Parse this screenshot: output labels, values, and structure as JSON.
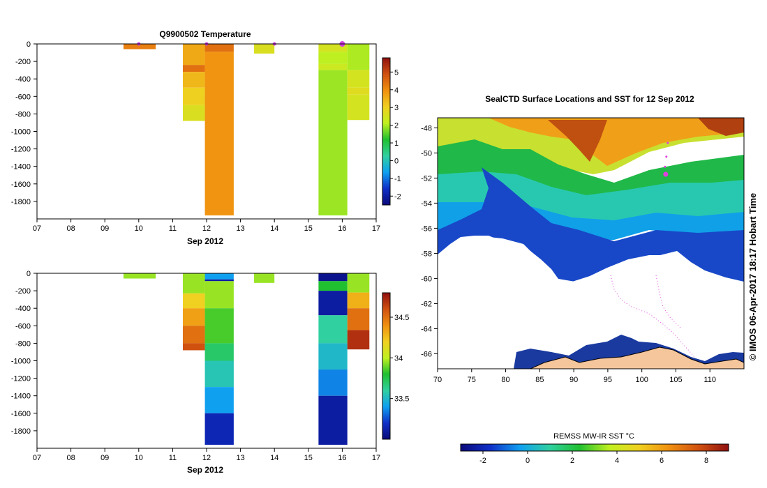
{
  "chart_data": [
    {
      "type": "heatmap",
      "id": "temperature-section",
      "title": "Q9900502  Temperature",
      "xlabel": "Sep 2012",
      "ylabel": "",
      "xlim": [
        7,
        17
      ],
      "ylim": [
        -2000,
        0
      ],
      "xticks": [
        "07",
        "08",
        "09",
        "10",
        "11",
        "12",
        "13",
        "14",
        "15",
        "16",
        "17"
      ],
      "yticks": [
        "0",
        "-200",
        "-400",
        "-600",
        "-800",
        "-1000",
        "-1200",
        "-1400",
        "-1600",
        "-1800"
      ],
      "colorbar": {
        "min": -2.5,
        "max": 5.8,
        "ticks": [
          "5",
          "4",
          "3",
          "2",
          "1",
          "0",
          "-1",
          "-2"
        ],
        "colors": [
          "#0a0a7a",
          "#1030c8",
          "#10a0f0",
          "#30d0a0",
          "#20c030",
          "#c0f020",
          "#f0d020",
          "#f09010",
          "#d05010",
          "#901010"
        ]
      },
      "profiles": [
        {
          "start": 9.55,
          "end": 10.5,
          "layers": [
            {
              "top": 0,
              "bottom": -60,
              "value": 4.2
            }
          ]
        },
        {
          "start": 11.3,
          "end": 11.95,
          "layers": [
            {
              "top": 0,
              "bottom": -240,
              "value": 3.6
            },
            {
              "top": -240,
              "bottom": -320,
              "value": 4.4
            },
            {
              "top": -320,
              "bottom": -500,
              "value": 3.4
            },
            {
              "top": -500,
              "bottom": -700,
              "value": 3.0
            },
            {
              "top": -700,
              "bottom": -880,
              "value": 2.6
            }
          ]
        },
        {
          "start": 11.95,
          "end": 12.8,
          "layers": [
            {
              "top": 0,
              "bottom": -90,
              "value": 4.4
            },
            {
              "top": -90,
              "bottom": -1960,
              "value": 3.9
            }
          ]
        },
        {
          "start": 13.4,
          "end": 14.0,
          "layers": [
            {
              "top": 0,
              "bottom": -110,
              "value": 2.6
            }
          ]
        },
        {
          "start": 15.3,
          "end": 16.15,
          "layers": [
            {
              "top": 0,
              "bottom": -90,
              "value": 2.5
            },
            {
              "top": -90,
              "bottom": -230,
              "value": 2.1
            },
            {
              "top": -230,
              "bottom": -300,
              "value": 2.3
            },
            {
              "top": -300,
              "bottom": -1960,
              "value": 1.9
            }
          ]
        },
        {
          "start": 16.15,
          "end": 16.8,
          "layers": [
            {
              "top": 0,
              "bottom": -300,
              "value": 2.0
            },
            {
              "top": -300,
              "bottom": -500,
              "value": 2.5
            },
            {
              "top": -500,
              "bottom": -580,
              "value": 2.7
            },
            {
              "top": -580,
              "bottom": -870,
              "value": 2.5
            }
          ]
        }
      ],
      "markers": [
        10.0,
        12.0,
        14.0,
        16.0
      ]
    },
    {
      "type": "heatmap",
      "id": "salinity-section",
      "title": "",
      "xlabel": "Sep 2012",
      "ylabel": "",
      "xlim": [
        7,
        17
      ],
      "ylim": [
        -2000,
        0
      ],
      "xticks": [
        "07",
        "08",
        "09",
        "10",
        "11",
        "12",
        "13",
        "14",
        "15",
        "16",
        "17"
      ],
      "yticks": [
        "0",
        "-200",
        "-400",
        "-600",
        "-800",
        "-1000",
        "-1200",
        "-1400",
        "-1600",
        "-1800"
      ],
      "colorbar": {
        "min": 33.0,
        "max": 34.8,
        "ticks": [
          "34.5",
          "34",
          "33.5"
        ],
        "colors": [
          "#0a0a7a",
          "#1030c8",
          "#10a0f0",
          "#30d0a0",
          "#20c030",
          "#c0f020",
          "#f0d020",
          "#f09010",
          "#d05010",
          "#901010"
        ]
      },
      "profiles": [
        {
          "start": 9.55,
          "end": 10.5,
          "layers": [
            {
              "top": 0,
              "bottom": -60,
              "value": 33.95
            }
          ]
        },
        {
          "start": 11.3,
          "end": 11.95,
          "layers": [
            {
              "top": 0,
              "bottom": -230,
              "value": 33.95
            },
            {
              "top": -230,
              "bottom": -400,
              "value": 34.2
            },
            {
              "top": -400,
              "bottom": -600,
              "value": 34.35
            },
            {
              "top": -600,
              "bottom": -800,
              "value": 34.5
            },
            {
              "top": -800,
              "bottom": -880,
              "value": 34.6
            }
          ]
        },
        {
          "start": 11.95,
          "end": 12.8,
          "layers": [
            {
              "top": 0,
              "bottom": -70,
              "value": 33.4
            },
            {
              "top": -70,
              "bottom": -90,
              "value": 33.1
            },
            {
              "top": -90,
              "bottom": -400,
              "value": 33.95
            },
            {
              "top": -400,
              "bottom": -800,
              "value": 33.85
            },
            {
              "top": -800,
              "bottom": -1000,
              "value": 33.7
            },
            {
              "top": -1000,
              "bottom": -1300,
              "value": 33.55
            },
            {
              "top": -1300,
              "bottom": -1600,
              "value": 33.4
            },
            {
              "top": -1600,
              "bottom": -1960,
              "value": 33.15
            }
          ]
        },
        {
          "start": 13.4,
          "end": 14.0,
          "layers": [
            {
              "top": 0,
              "bottom": -110,
              "value": 33.95
            }
          ]
        },
        {
          "start": 15.3,
          "end": 16.15,
          "layers": [
            {
              "top": 0,
              "bottom": -90,
              "value": 33.05
            },
            {
              "top": -90,
              "bottom": -200,
              "value": 33.8
            },
            {
              "top": -200,
              "bottom": -480,
              "value": 33.1
            },
            {
              "top": -480,
              "bottom": -800,
              "value": 33.6
            },
            {
              "top": -800,
              "bottom": -1100,
              "value": 33.5
            },
            {
              "top": -1100,
              "bottom": -1400,
              "value": 33.35
            },
            {
              "top": -1400,
              "bottom": -1960,
              "value": 33.1
            }
          ]
        },
        {
          "start": 16.15,
          "end": 16.8,
          "layers": [
            {
              "top": 0,
              "bottom": -220,
              "value": 33.95
            },
            {
              "top": -220,
              "bottom": -400,
              "value": 34.3
            },
            {
              "top": -400,
              "bottom": -650,
              "value": 34.5
            },
            {
              "top": -650,
              "bottom": -870,
              "value": 34.7
            }
          ]
        }
      ]
    },
    {
      "type": "heatmap",
      "id": "sst-map",
      "title": "SealCTD Surface Locations and SST for 12 Sep 2012",
      "xlabel": "",
      "ylabel": "",
      "xlim": [
        70,
        115
      ],
      "ylim": [
        -67.2,
        -47.2
      ],
      "xticks": [
        "70",
        "75",
        "80",
        "85",
        "90",
        "95",
        "100",
        "105",
        "110"
      ],
      "yticks": [
        "-48",
        "-50",
        "-52",
        "-54",
        "-56",
        "-58",
        "-60",
        "-62",
        "-64",
        "-66"
      ],
      "colorbar": {
        "label": "REMSS MW-IR SST °C",
        "min": -3,
        "max": 9,
        "ticks": [
          "-2",
          "0",
          "2",
          "4",
          "6",
          "8"
        ],
        "colors": [
          "#0a0a7a",
          "#1030c8",
          "#10a0f0",
          "#30d0a0",
          "#20c030",
          "#c0f020",
          "#f0d020",
          "#f09010",
          "#d05010",
          "#901010"
        ]
      },
      "surface_locations": [
        {
          "lon": 103.5,
          "lat": -51.7,
          "highlight": true
        },
        {
          "lon": 103.8,
          "lat": -49.2,
          "highlight": false
        },
        {
          "lon": 103.6,
          "lat": -50.3,
          "highlight": false
        },
        {
          "lon": 103.4,
          "lat": -51.1,
          "highlight": false
        }
      ]
    }
  ],
  "credit": "©  IMOS 06-Apr-2017 18:17 Hobart Time"
}
